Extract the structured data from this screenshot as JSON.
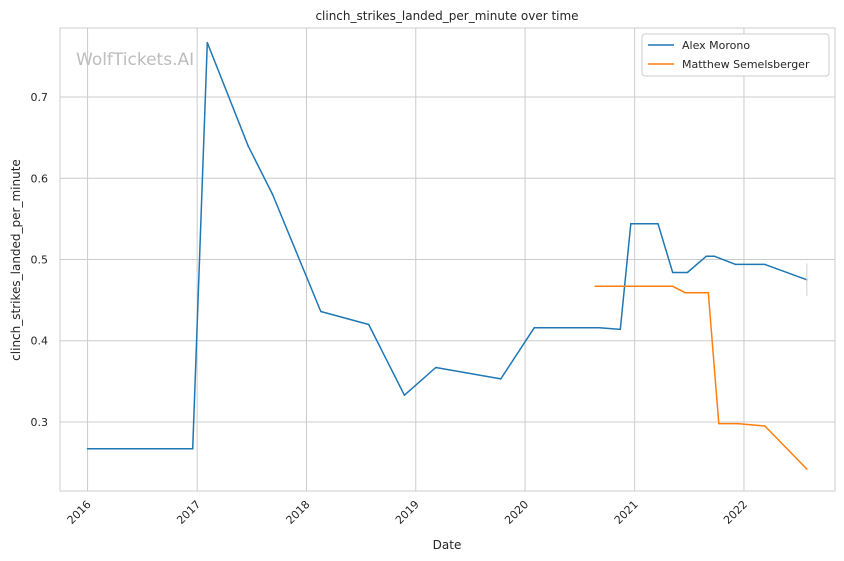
{
  "chart_data": {
    "type": "line",
    "title": "clinch_strikes_landed_per_minute over time",
    "xlabel": "Date",
    "ylabel": "clinch_strikes_landed_per_minute",
    "watermark": "WolfTickets.AI",
    "x_ticks": [
      "2016",
      "2017",
      "2018",
      "2019",
      "2020",
      "2021",
      "2022"
    ],
    "y_ticks": [
      "0.3",
      "0.4",
      "0.5",
      "0.6",
      "0.7"
    ],
    "xlim": [
      "2015-10-01",
      "2022-11-01"
    ],
    "ylim": [
      0.215,
      0.785
    ],
    "grid": true,
    "legend_position": "top-right",
    "series": [
      {
        "name": "Alex Morono",
        "color": "#1f77b4",
        "points": [
          [
            "2016-01-01",
            0.267
          ],
          [
            "2016-12-17",
            0.267
          ],
          [
            "2017-02-04",
            0.767
          ],
          [
            "2017-06-20",
            0.64
          ],
          [
            "2017-09-10",
            0.58
          ],
          [
            "2018-02-18",
            0.436
          ],
          [
            "2018-07-28",
            0.42
          ],
          [
            "2018-11-24",
            0.333
          ],
          [
            "2019-03-09",
            0.367
          ],
          [
            "2019-10-12",
            0.353
          ],
          [
            "2020-02-01",
            0.416
          ],
          [
            "2020-09-05",
            0.416
          ],
          [
            "2020-11-14",
            0.414
          ],
          [
            "2020-12-19",
            0.544
          ],
          [
            "2021-03-20",
            0.544
          ],
          [
            "2021-05-08",
            0.484
          ],
          [
            "2021-06-26",
            0.484
          ],
          [
            "2021-08-28",
            0.504
          ],
          [
            "2021-09-25",
            0.504
          ],
          [
            "2021-12-04",
            0.494
          ],
          [
            "2022-03-12",
            0.494
          ],
          [
            "2022-07-30",
            0.475
          ]
        ]
      },
      {
        "name": "Matthew Semelsberger",
        "color": "#ff7f0e",
        "points": [
          [
            "2020-08-22",
            0.467
          ],
          [
            "2021-05-08",
            0.467
          ],
          [
            "2021-06-19",
            0.459
          ],
          [
            "2021-09-04",
            0.459
          ],
          [
            "2021-10-09",
            0.298
          ],
          [
            "2021-12-11",
            0.298
          ],
          [
            "2022-03-12",
            0.295
          ],
          [
            "2022-07-30",
            0.242
          ]
        ]
      }
    ]
  }
}
